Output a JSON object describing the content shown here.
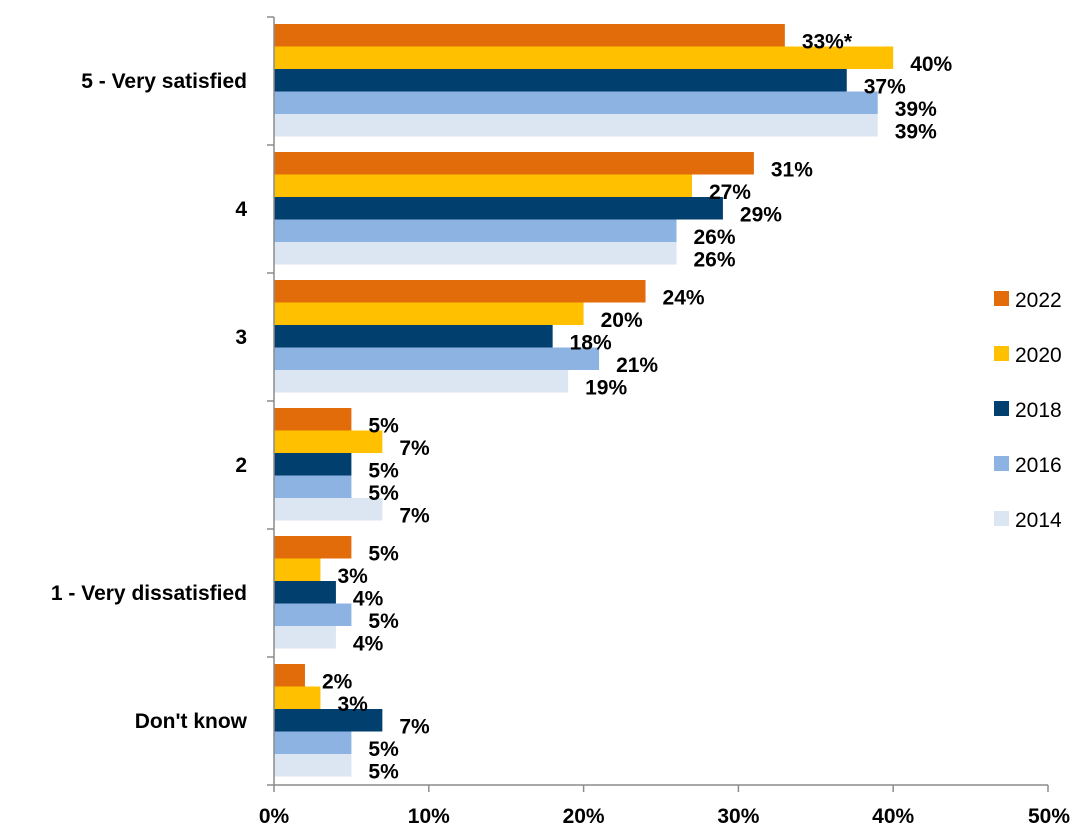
{
  "chart_data": {
    "type": "bar",
    "orientation": "horizontal",
    "categories": [
      "5 - Very satisfied",
      "4",
      "3",
      "2",
      "1 - Very dissatisfied",
      "Don't know"
    ],
    "series": [
      {
        "name": "2022",
        "color": "#E36C0A",
        "values": [
          33,
          31,
          24,
          5,
          5,
          2
        ],
        "labels": [
          "33%*",
          "31%",
          "24%",
          "5%",
          "5%",
          "2%"
        ]
      },
      {
        "name": "2020",
        "color": "#FFC000",
        "values": [
          40,
          27,
          20,
          7,
          3,
          3
        ],
        "labels": [
          "40%",
          "27%",
          "20%",
          "7%",
          "3%",
          "3%"
        ]
      },
      {
        "name": "2018",
        "color": "#003F6E",
        "values": [
          37,
          29,
          18,
          5,
          4,
          7
        ],
        "labels": [
          "37%",
          "29%",
          "18%",
          "5%",
          "4%",
          "7%"
        ]
      },
      {
        "name": "2016",
        "color": "#8DB3E2",
        "values": [
          39,
          26,
          21,
          5,
          5,
          5
        ],
        "labels": [
          "39%",
          "26%",
          "21%",
          "5%",
          "5%",
          "5%"
        ]
      },
      {
        "name": "2014",
        "color": "#DCE6F2",
        "values": [
          39,
          26,
          19,
          7,
          4,
          5
        ],
        "labels": [
          "39%",
          "26%",
          "19%",
          "7%",
          "4%",
          "5%"
        ]
      }
    ],
    "x_ticks": [
      "0%",
      "10%",
      "20%",
      "30%",
      "40%",
      "50%"
    ],
    "xlim": [
      0,
      50
    ],
    "legend": "right",
    "grid": false
  }
}
